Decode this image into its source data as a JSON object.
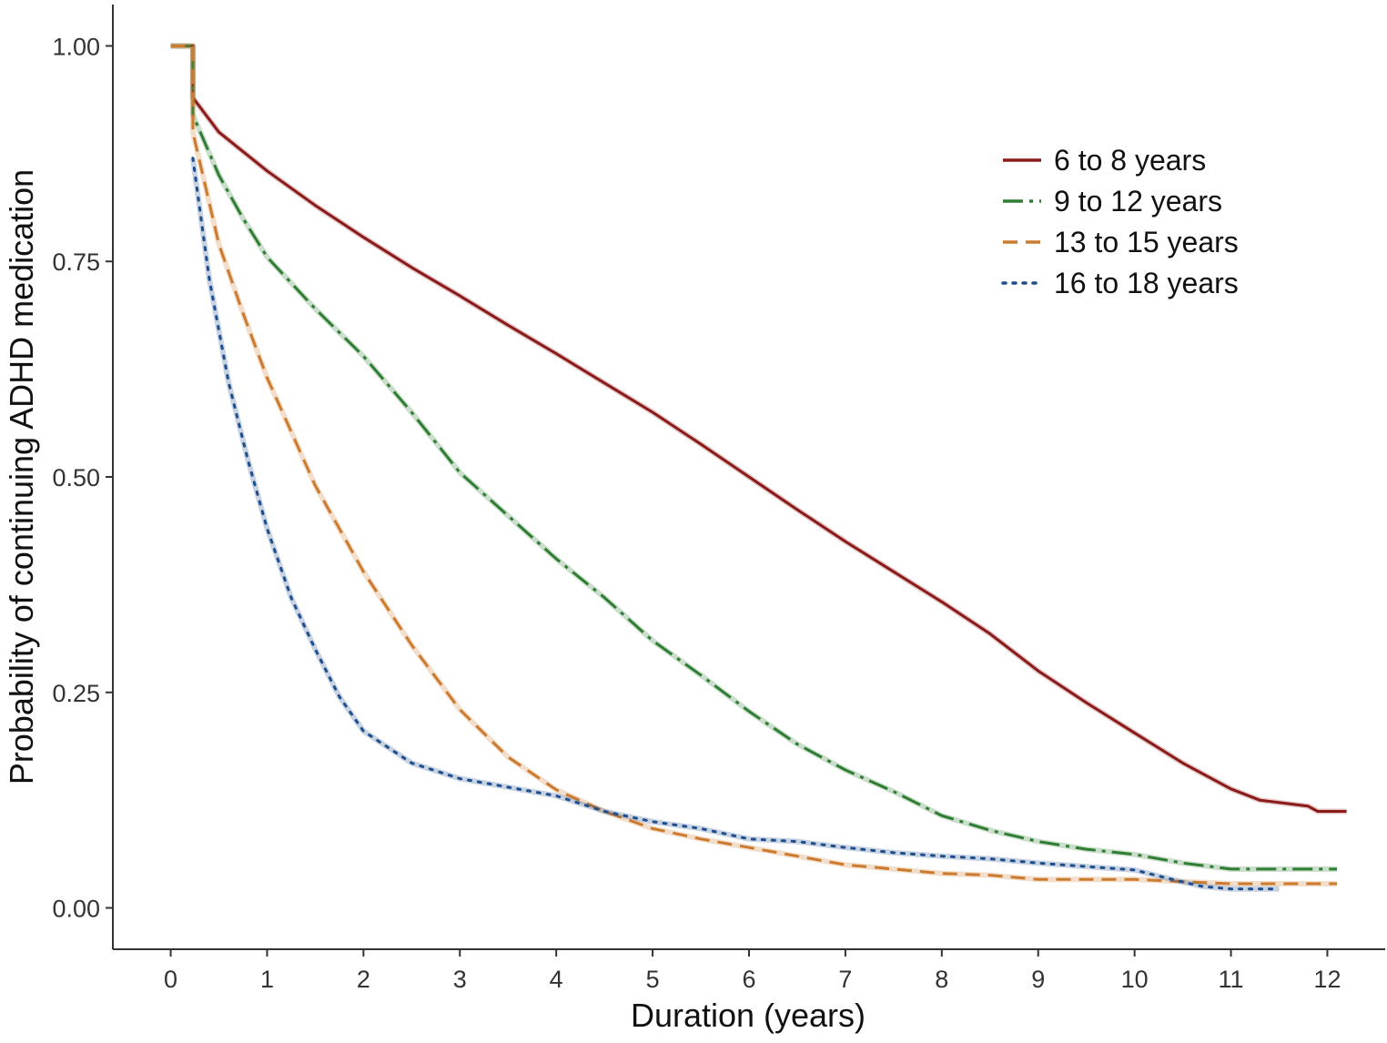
{
  "chart_data": {
    "type": "line",
    "title": "",
    "xlabel": "Duration (years)",
    "ylabel": "Probability of continuing ADHD medication",
    "xlim": [
      -0.6,
      12.6
    ],
    "ylim": [
      -0.048,
      1.048
    ],
    "x_ticks": [
      0,
      1,
      2,
      3,
      4,
      5,
      6,
      7,
      8,
      9,
      10,
      11,
      12
    ],
    "y_ticks": [
      0,
      0.25,
      0.5,
      0.75,
      1
    ],
    "x_tick_labels": [
      "0",
      "1",
      "2",
      "3",
      "4",
      "5",
      "6",
      "7",
      "8",
      "9",
      "10",
      "11",
      "12"
    ],
    "y_tick_labels": [
      "0.00",
      "0.25",
      "0.50",
      "0.75",
      "1.00"
    ],
    "grid": false,
    "legend_position": "top-right",
    "series": [
      {
        "name": "6 to 8 years",
        "color": "#8b1a1a",
        "dash": "solid",
        "points": [
          [
            0,
            1.0
          ],
          [
            0.23,
            1.0
          ],
          [
            0.23,
            0.94
          ],
          [
            0.5,
            0.9
          ],
          [
            1,
            0.855
          ],
          [
            1.5,
            0.815
          ],
          [
            2,
            0.778
          ],
          [
            2.5,
            0.743
          ],
          [
            3,
            0.71
          ],
          [
            3.5,
            0.676
          ],
          [
            4,
            0.643
          ],
          [
            4.5,
            0.609
          ],
          [
            5,
            0.575
          ],
          [
            5.5,
            0.538
          ],
          [
            6,
            0.5
          ],
          [
            6.5,
            0.462
          ],
          [
            7,
            0.425
          ],
          [
            7.5,
            0.39
          ],
          [
            8,
            0.355
          ],
          [
            8.5,
            0.318
          ],
          [
            9,
            0.275
          ],
          [
            9.5,
            0.238
          ],
          [
            10,
            0.203
          ],
          [
            10.5,
            0.168
          ],
          [
            11,
            0.138
          ],
          [
            11.3,
            0.125
          ],
          [
            11.8,
            0.118
          ],
          [
            11.9,
            0.112
          ],
          [
            12.2,
            0.112
          ]
        ]
      },
      {
        "name": "9 to 12 years",
        "color": "#2e7d32",
        "dash": "dashdot",
        "points": [
          [
            0,
            1.0
          ],
          [
            0.23,
            1.0
          ],
          [
            0.23,
            0.92
          ],
          [
            0.5,
            0.85
          ],
          [
            0.75,
            0.8
          ],
          [
            1,
            0.755
          ],
          [
            1.5,
            0.695
          ],
          [
            2,
            0.64
          ],
          [
            2.5,
            0.575
          ],
          [
            3,
            0.505
          ],
          [
            3.5,
            0.455
          ],
          [
            4,
            0.405
          ],
          [
            4.5,
            0.36
          ],
          [
            5,
            0.31
          ],
          [
            5.5,
            0.27
          ],
          [
            6,
            0.228
          ],
          [
            6.5,
            0.19
          ],
          [
            7,
            0.16
          ],
          [
            7.5,
            0.135
          ],
          [
            8,
            0.107
          ],
          [
            8.5,
            0.09
          ],
          [
            9,
            0.077
          ],
          [
            9.5,
            0.068
          ],
          [
            10,
            0.062
          ],
          [
            10.5,
            0.052
          ],
          [
            11,
            0.045
          ],
          [
            12.1,
            0.045
          ]
        ]
      },
      {
        "name": "13 to 15 years",
        "color": "#cc7a2e",
        "dash": "dashed",
        "points": [
          [
            0,
            1.0
          ],
          [
            0.23,
            1.0
          ],
          [
            0.23,
            0.9
          ],
          [
            0.5,
            0.77
          ],
          [
            0.75,
            0.69
          ],
          [
            1,
            0.615
          ],
          [
            1.5,
            0.49
          ],
          [
            2,
            0.39
          ],
          [
            2.5,
            0.305
          ],
          [
            3,
            0.23
          ],
          [
            3.5,
            0.175
          ],
          [
            4,
            0.137
          ],
          [
            4.5,
            0.112
          ],
          [
            5,
            0.092
          ],
          [
            5.5,
            0.08
          ],
          [
            6,
            0.07
          ],
          [
            6.5,
            0.06
          ],
          [
            7,
            0.05
          ],
          [
            7.5,
            0.045
          ],
          [
            8,
            0.04
          ],
          [
            8.5,
            0.038
          ],
          [
            9,
            0.033
          ],
          [
            10,
            0.033
          ],
          [
            11,
            0.028
          ],
          [
            12.1,
            0.028
          ]
        ]
      },
      {
        "name": "16 to 18 years",
        "color": "#1f4e8c",
        "dash": "dotted",
        "points": [
          [
            0.23,
            0.87
          ],
          [
            0.4,
            0.73
          ],
          [
            0.6,
            0.61
          ],
          [
            0.8,
            0.52
          ],
          [
            1,
            0.44
          ],
          [
            1.25,
            0.36
          ],
          [
            1.5,
            0.3
          ],
          [
            1.75,
            0.245
          ],
          [
            2,
            0.205
          ],
          [
            2.5,
            0.168
          ],
          [
            3,
            0.15
          ],
          [
            3.5,
            0.14
          ],
          [
            4,
            0.13
          ],
          [
            4.5,
            0.112
          ],
          [
            5,
            0.1
          ],
          [
            5.5,
            0.092
          ],
          [
            6,
            0.08
          ],
          [
            6.5,
            0.077
          ],
          [
            7,
            0.07
          ],
          [
            7.5,
            0.064
          ],
          [
            8,
            0.06
          ],
          [
            8.5,
            0.057
          ],
          [
            9,
            0.052
          ],
          [
            9.5,
            0.048
          ],
          [
            10,
            0.044
          ],
          [
            10.5,
            0.03
          ],
          [
            10.7,
            0.025
          ],
          [
            11,
            0.022
          ],
          [
            11.5,
            0.022
          ]
        ]
      }
    ]
  }
}
